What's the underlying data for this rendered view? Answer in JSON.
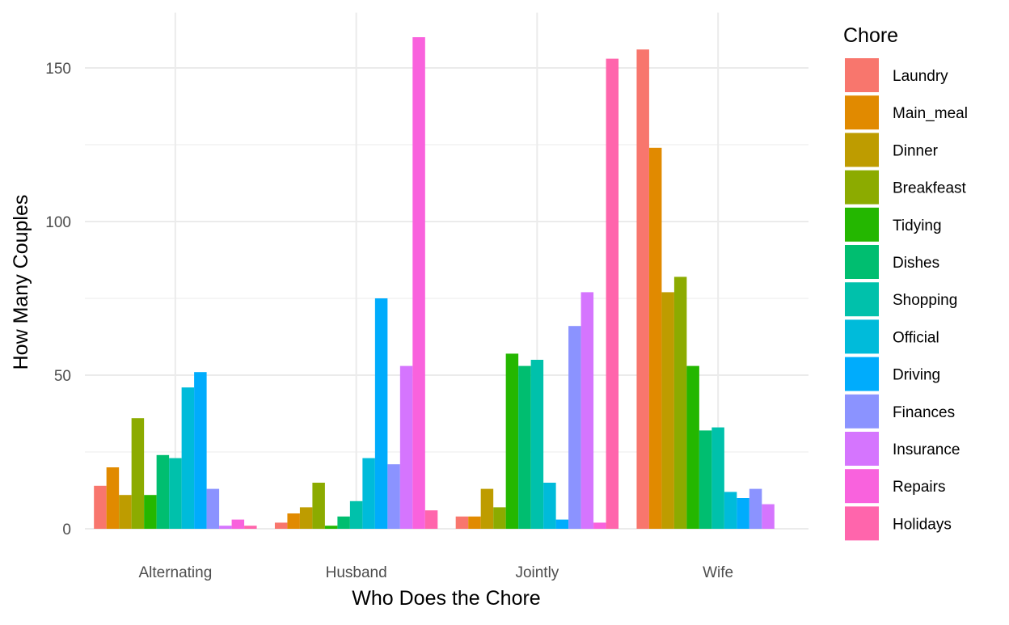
{
  "chart_data": {
    "type": "bar",
    "title": "",
    "xlabel": "Who Does the Chore",
    "ylabel": "How Many Couples",
    "ylim": [
      0,
      168
    ],
    "yticks": [
      0,
      50,
      100,
      150
    ],
    "ytick_labels": [
      "0",
      "50",
      "100",
      "150"
    ],
    "grid": true,
    "legend_title": "Chore",
    "legend_position": "right",
    "categories": [
      "Alternating",
      "Husband",
      "Jointly",
      "Wife"
    ],
    "series": [
      {
        "name": "Laundry",
        "color": "#F8766D",
        "values": [
          14,
          2,
          4,
          156
        ]
      },
      {
        "name": "Main_meal",
        "color": "#E18A00",
        "values": [
          20,
          5,
          4,
          124
        ]
      },
      {
        "name": "Dinner",
        "color": "#BE9C00",
        "values": [
          11,
          7,
          13,
          77
        ]
      },
      {
        "name": "Breakfeast",
        "color": "#8CAB00",
        "values": [
          36,
          15,
          7,
          82
        ]
      },
      {
        "name": "Tidying",
        "color": "#24B700",
        "values": [
          11,
          1,
          57,
          53
        ]
      },
      {
        "name": "Dishes",
        "color": "#00BE70",
        "values": [
          24,
          4,
          53,
          32
        ]
      },
      {
        "name": "Shopping",
        "color": "#00C1AB",
        "values": [
          23,
          9,
          55,
          33
        ]
      },
      {
        "name": "Official",
        "color": "#00BBDA",
        "values": [
          46,
          23,
          15,
          12
        ]
      },
      {
        "name": "Driving",
        "color": "#00ACFC",
        "values": [
          51,
          75,
          3,
          10
        ]
      },
      {
        "name": "Finances",
        "color": "#8B93FF",
        "values": [
          13,
          21,
          66,
          13
        ]
      },
      {
        "name": "Insurance",
        "color": "#D575FE",
        "values": [
          1,
          53,
          77,
          8
        ]
      },
      {
        "name": "Repairs",
        "color": "#F962DD",
        "values": [
          3,
          160,
          2,
          0
        ]
      },
      {
        "name": "Holidays",
        "color": "#FF65AC",
        "values": [
          1,
          6,
          153,
          0
        ]
      }
    ]
  }
}
